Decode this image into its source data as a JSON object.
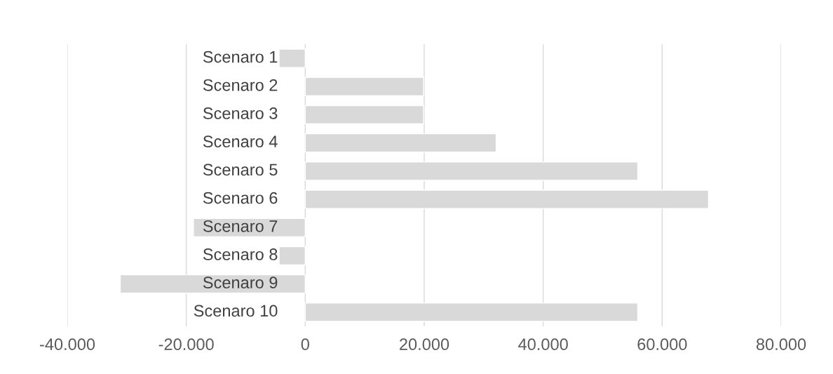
{
  "chart_data": {
    "type": "bar",
    "orientation": "horizontal",
    "categories": [
      "Scenaro 1",
      "Scenaro 2",
      "Scenaro 3",
      "Scenaro 4",
      "Scenaro 5",
      "Scenaro 6",
      "Scenaro 7",
      "Scenaro 8",
      "Scenaro 9",
      "Scenaro 10"
    ],
    "values": [
      -4400,
      19900,
      19900,
      32100,
      55900,
      67800,
      -18800,
      -4400,
      -31100,
      55900
    ],
    "color": "#d9d9d9",
    "xlim": [
      -40000,
      80000
    ],
    "xticks": [
      {
        "value": -40000,
        "label": "-40.000"
      },
      {
        "value": -20000,
        "label": "-20.000"
      },
      {
        "value": 0,
        "label": "0"
      },
      {
        "value": 20000,
        "label": "20.000"
      },
      {
        "value": 40000,
        "label": "40.000"
      },
      {
        "value": 60000,
        "label": "60.000"
      },
      {
        "value": 80000,
        "label": "80.000"
      }
    ],
    "grid": "x"
  }
}
